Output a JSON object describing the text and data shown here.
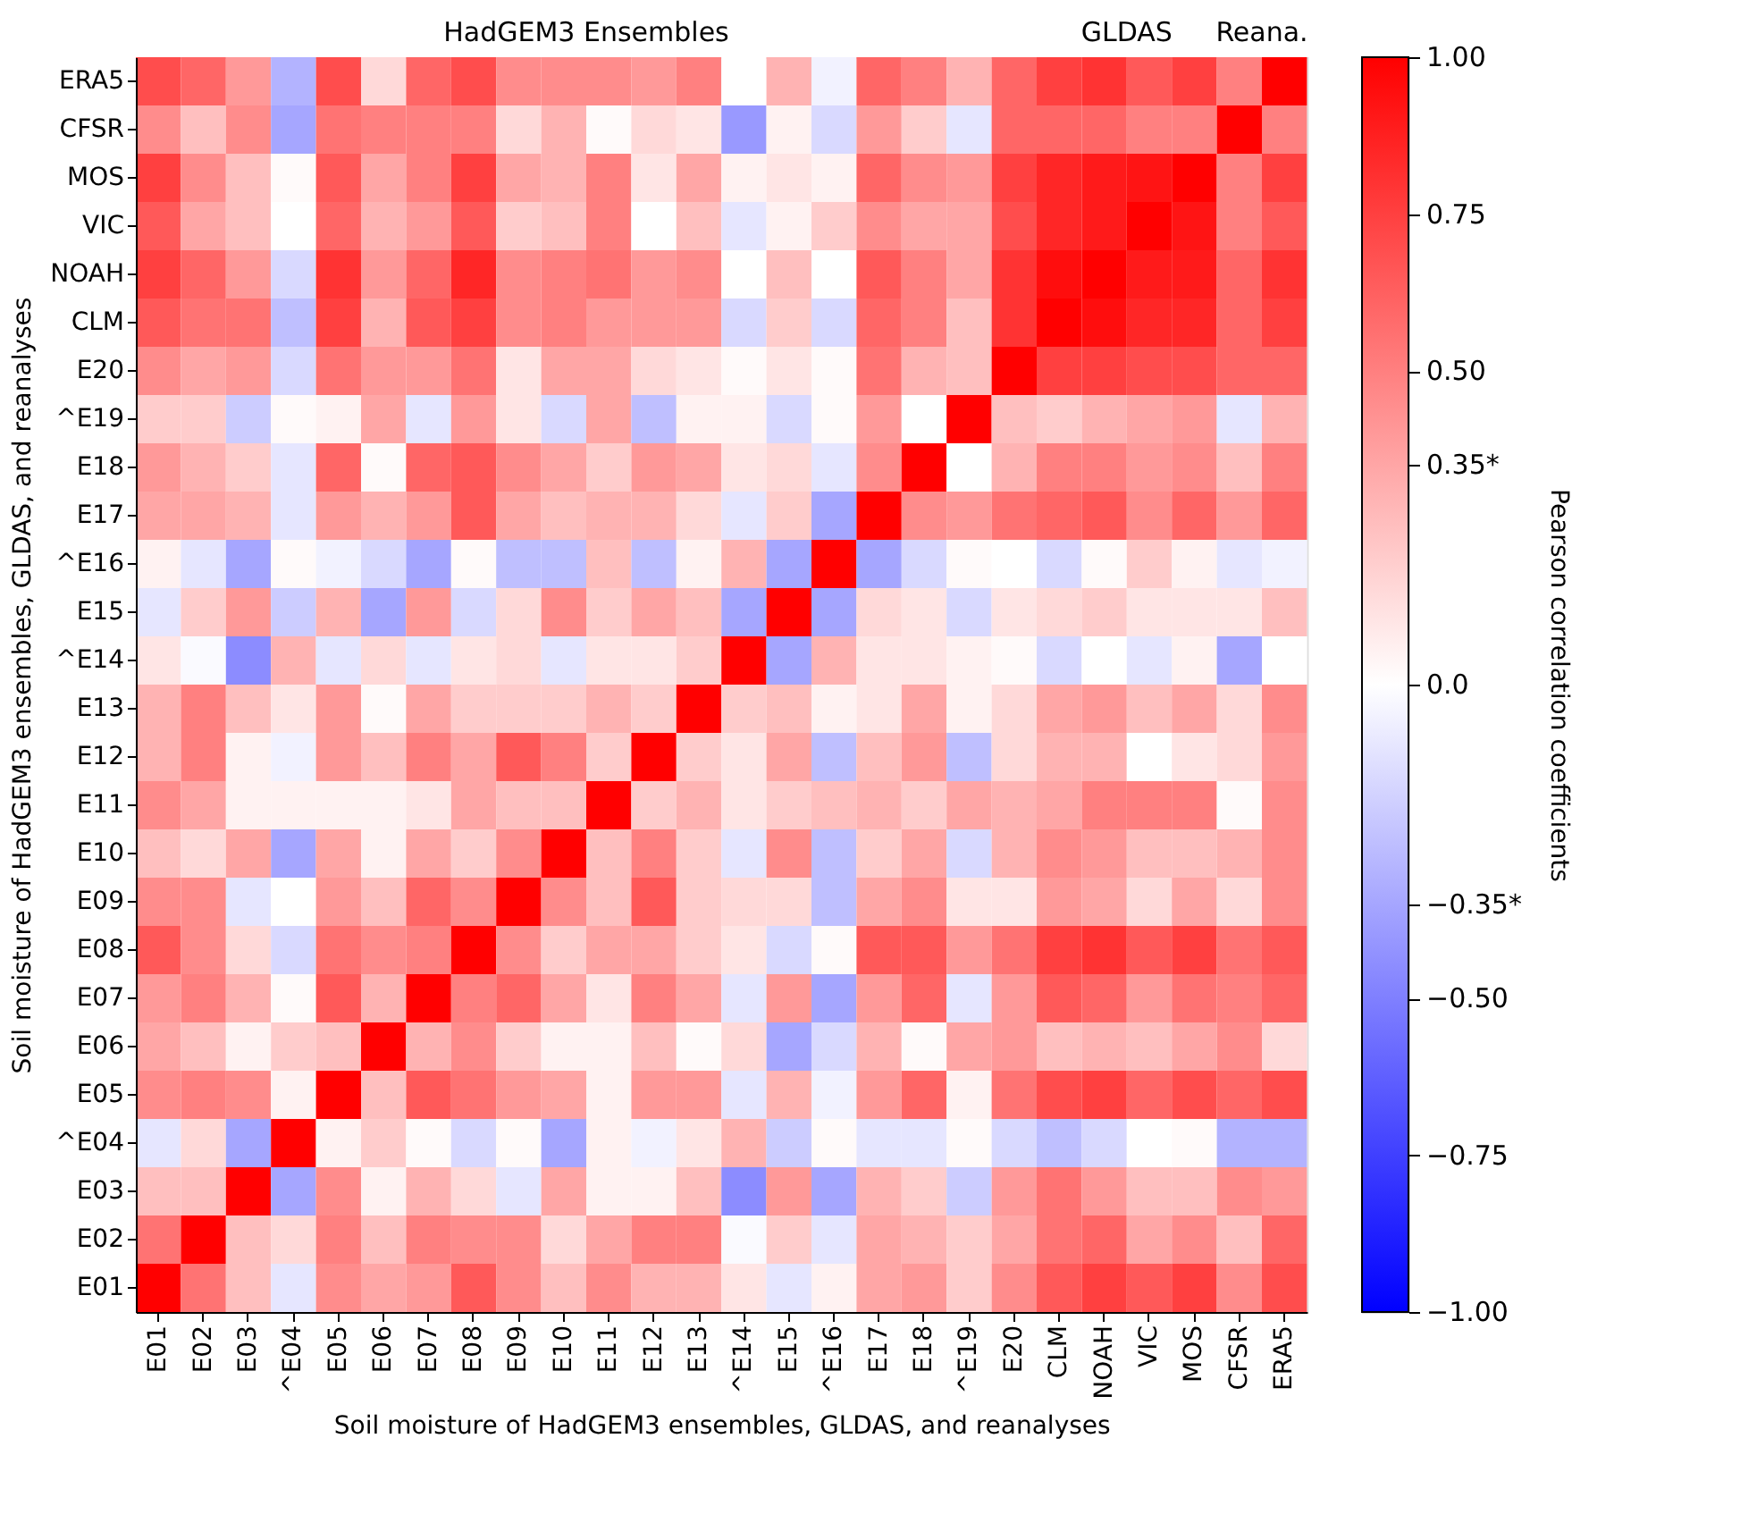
{
  "chart_data": {
    "type": "heatmap",
    "xlabel": "Soil moisture of HadGEM3 ensembles, GLDAS, and reanalyses",
    "ylabel": "Soil moisture of HadGEM3 ensembles, GLDAS, and reanalyses",
    "clabel": "Pearson correlation coefficients",
    "annotations": [
      "HadGEM3 Ensembles",
      "GLDAS",
      "Reana."
    ],
    "categories": [
      "E01",
      "E02",
      "E03",
      "^E04",
      "E05",
      "E06",
      "E07",
      "E08",
      "E09",
      "E10",
      "E11",
      "E12",
      "E13",
      "^E14",
      "E15",
      "^E16",
      "E17",
      "E18",
      "^E19",
      "E20",
      "CLM",
      "NOAH",
      "VIC",
      "MOS",
      "CFSR",
      "ERA5"
    ],
    "y_categories": [
      "ERA5",
      "CFSR",
      "MOS",
      "VIC",
      "NOAH",
      "CLM",
      "E20",
      "^E19",
      "E18",
      "E17",
      "^E16",
      "E15",
      "^E14",
      "E13",
      "E12",
      "E11",
      "E10",
      "E09",
      "E08",
      "E07",
      "E06",
      "E05",
      "^E04",
      "E03",
      "E02",
      "E01"
    ],
    "cells": [
      [
        0.7,
        0.6,
        0.4,
        -0.3,
        0.7,
        0.15,
        0.6,
        0.7,
        0.45,
        0.45,
        0.45,
        0.4,
        0.5,
        0.0,
        0.3,
        -0.05,
        0.6,
        0.5,
        0.3,
        0.6,
        0.75,
        0.8,
        0.65,
        0.75,
        0.5,
        1.0
      ],
      [
        0.45,
        0.25,
        0.45,
        -0.35,
        0.55,
        0.5,
        0.5,
        0.5,
        0.15,
        0.3,
        0.02,
        0.15,
        0.1,
        -0.4,
        0.05,
        -0.15,
        0.4,
        0.2,
        -0.1,
        0.6,
        0.6,
        0.6,
        0.5,
        0.5,
        1.0,
        0.5
      ],
      [
        0.75,
        0.45,
        0.25,
        0.02,
        0.65,
        0.35,
        0.5,
        0.75,
        0.35,
        0.3,
        0.5,
        0.1,
        0.35,
        0.05,
        0.1,
        0.05,
        0.6,
        0.45,
        0.4,
        0.75,
        0.85,
        0.9,
        0.92,
        1.0,
        0.5,
        0.75
      ],
      [
        0.65,
        0.35,
        0.25,
        0.0,
        0.6,
        0.3,
        0.4,
        0.65,
        0.2,
        0.25,
        0.5,
        0.0,
        0.25,
        -0.1,
        0.05,
        0.2,
        0.45,
        0.35,
        0.35,
        0.7,
        0.85,
        0.9,
        1.0,
        0.92,
        0.5,
        0.65
      ],
      [
        0.75,
        0.6,
        0.4,
        -0.15,
        0.8,
        0.4,
        0.6,
        0.85,
        0.45,
        0.5,
        0.55,
        0.4,
        0.45,
        0.0,
        0.25,
        0.0,
        0.65,
        0.5,
        0.35,
        0.8,
        0.95,
        1.0,
        0.9,
        0.9,
        0.6,
        0.8
      ],
      [
        0.65,
        0.55,
        0.55,
        -0.25,
        0.75,
        0.3,
        0.65,
        0.75,
        0.45,
        0.5,
        0.4,
        0.4,
        0.4,
        -0.15,
        0.2,
        -0.15,
        0.6,
        0.5,
        0.25,
        0.8,
        1.0,
        0.95,
        0.85,
        0.85,
        0.6,
        0.75
      ],
      [
        0.45,
        0.35,
        0.4,
        -0.15,
        0.55,
        0.4,
        0.4,
        0.55,
        0.1,
        0.35,
        0.35,
        0.15,
        0.1,
        0.02,
        0.1,
        0.02,
        0.55,
        0.3,
        0.25,
        1.0,
        0.75,
        0.75,
        0.7,
        0.7,
        0.6,
        0.6
      ],
      [
        0.2,
        0.2,
        -0.2,
        0.02,
        0.05,
        0.35,
        -0.1,
        0.4,
        0.1,
        -0.15,
        0.35,
        -0.25,
        0.05,
        0.05,
        -0.15,
        0.02,
        0.4,
        0.0,
        1.0,
        0.25,
        0.2,
        0.3,
        0.35,
        0.4,
        -0.1,
        0.3
      ],
      [
        0.4,
        0.3,
        0.2,
        -0.1,
        0.6,
        0.02,
        0.6,
        0.65,
        0.45,
        0.35,
        0.2,
        0.4,
        0.35,
        0.1,
        0.15,
        -0.1,
        0.45,
        1.0,
        0.0,
        0.3,
        0.5,
        0.5,
        0.4,
        0.45,
        0.25,
        0.5
      ],
      [
        0.35,
        0.35,
        0.3,
        -0.1,
        0.4,
        0.3,
        0.4,
        0.65,
        0.35,
        0.25,
        0.3,
        0.3,
        0.15,
        -0.1,
        0.2,
        -0.35,
        1.0,
        0.45,
        0.4,
        0.55,
        0.6,
        0.65,
        0.45,
        0.6,
        0.4,
        0.6
      ],
      [
        0.05,
        -0.1,
        -0.35,
        0.02,
        -0.05,
        -0.15,
        -0.35,
        0.02,
        -0.25,
        -0.25,
        0.25,
        -0.25,
        0.05,
        0.3,
        -0.35,
        1.0,
        -0.35,
        -0.15,
        0.02,
        0.0,
        -0.15,
        0.02,
        0.2,
        0.05,
        -0.1,
        -0.05
      ],
      [
        -0.1,
        0.2,
        0.4,
        -0.2,
        0.3,
        -0.35,
        0.4,
        -0.15,
        0.15,
        0.45,
        0.2,
        0.35,
        0.25,
        -0.35,
        1.0,
        -0.35,
        0.15,
        0.1,
        -0.15,
        0.1,
        0.15,
        0.2,
        0.1,
        0.1,
        0.1,
        0.25
      ],
      [
        0.1,
        -0.02,
        -0.45,
        0.3,
        -0.1,
        0.15,
        -0.1,
        0.1,
        0.15,
        -0.1,
        0.1,
        0.1,
        0.2,
        1.0,
        -0.35,
        0.3,
        0.1,
        0.1,
        0.05,
        0.02,
        -0.15,
        0.0,
        -0.1,
        0.05,
        -0.35,
        0.0
      ],
      [
        0.3,
        0.5,
        0.25,
        0.1,
        0.4,
        0.02,
        0.35,
        0.2,
        0.2,
        0.2,
        0.3,
        0.2,
        1.0,
        0.2,
        0.25,
        0.05,
        0.1,
        0.35,
        0.05,
        0.15,
        0.35,
        0.4,
        0.25,
        0.35,
        0.15,
        0.45
      ],
      [
        0.3,
        0.5,
        0.05,
        -0.05,
        0.4,
        0.25,
        0.5,
        0.35,
        0.65,
        0.5,
        0.2,
        1.0,
        0.2,
        0.1,
        0.35,
        -0.25,
        0.25,
        0.4,
        -0.25,
        0.15,
        0.3,
        0.3,
        0.0,
        0.1,
        0.15,
        0.4
      ],
      [
        0.45,
        0.35,
        0.05,
        0.05,
        0.05,
        0.05,
        0.1,
        0.35,
        0.25,
        0.25,
        1.0,
        0.2,
        0.3,
        0.1,
        0.2,
        0.25,
        0.3,
        0.2,
        0.35,
        0.3,
        0.35,
        0.5,
        0.5,
        0.5,
        0.02,
        0.45
      ],
      [
        0.25,
        0.15,
        0.35,
        -0.35,
        0.35,
        0.05,
        0.35,
        0.2,
        0.45,
        1.0,
        0.25,
        0.5,
        0.2,
        -0.1,
        0.45,
        -0.25,
        0.2,
        0.35,
        -0.15,
        0.3,
        0.45,
        0.4,
        0.25,
        0.25,
        0.3,
        0.45
      ],
      [
        0.45,
        0.45,
        -0.1,
        0.0,
        0.4,
        0.25,
        0.6,
        0.45,
        1.0,
        0.45,
        0.25,
        0.65,
        0.2,
        0.15,
        0.15,
        -0.25,
        0.35,
        0.45,
        0.1,
        0.1,
        0.4,
        0.35,
        0.15,
        0.35,
        0.15,
        0.45
      ],
      [
        0.65,
        0.45,
        0.15,
        -0.15,
        0.55,
        0.45,
        0.5,
        1.0,
        0.45,
        0.2,
        0.35,
        0.35,
        0.2,
        0.1,
        -0.15,
        0.02,
        0.65,
        0.65,
        0.4,
        0.55,
        0.75,
        0.8,
        0.65,
        0.75,
        0.55,
        0.65
      ],
      [
        0.4,
        0.5,
        0.3,
        0.02,
        0.65,
        0.3,
        1.0,
        0.5,
        0.6,
        0.35,
        0.1,
        0.5,
        0.35,
        -0.1,
        0.4,
        -0.35,
        0.4,
        0.6,
        -0.1,
        0.4,
        0.65,
        0.6,
        0.4,
        0.55,
        0.5,
        0.6
      ],
      [
        0.35,
        0.25,
        0.05,
        0.2,
        0.25,
        1.0,
        0.3,
        0.45,
        0.2,
        0.05,
        0.05,
        0.25,
        0.02,
        0.15,
        -0.35,
        -0.15,
        0.3,
        0.02,
        0.35,
        0.4,
        0.25,
        0.3,
        0.25,
        0.35,
        0.45,
        0.15
      ],
      [
        0.45,
        0.5,
        0.45,
        0.05,
        1.0,
        0.25,
        0.65,
        0.55,
        0.4,
        0.35,
        0.05,
        0.4,
        0.4,
        -0.1,
        0.3,
        -0.05,
        0.4,
        0.6,
        0.05,
        0.55,
        0.7,
        0.75,
        0.6,
        0.7,
        0.6,
        0.7
      ],
      [
        -0.1,
        0.15,
        -0.35,
        1.0,
        0.05,
        0.2,
        0.02,
        -0.15,
        0.02,
        -0.35,
        0.05,
        -0.05,
        0.1,
        0.3,
        -0.2,
        0.02,
        -0.1,
        -0.1,
        0.02,
        -0.15,
        -0.25,
        -0.15,
        0.0,
        0.02,
        -0.3,
        -0.3
      ],
      [
        0.25,
        0.25,
        1.0,
        -0.35,
        0.45,
        0.05,
        0.3,
        0.15,
        -0.1,
        0.35,
        0.05,
        0.05,
        0.25,
        -0.45,
        0.4,
        -0.35,
        0.3,
        0.2,
        -0.2,
        0.4,
        0.55,
        0.4,
        0.25,
        0.25,
        0.45,
        0.4
      ],
      [
        0.55,
        1.0,
        0.25,
        0.15,
        0.5,
        0.25,
        0.5,
        0.45,
        0.45,
        0.15,
        0.35,
        0.5,
        0.5,
        -0.02,
        0.2,
        -0.1,
        0.35,
        0.3,
        0.2,
        0.35,
        0.55,
        0.6,
        0.35,
        0.45,
        0.25,
        0.6
      ],
      [
        1.0,
        0.55,
        0.25,
        -0.1,
        0.45,
        0.35,
        0.4,
        0.65,
        0.45,
        0.25,
        0.45,
        0.3,
        0.3,
        0.1,
        -0.1,
        0.05,
        0.35,
        0.4,
        0.2,
        0.45,
        0.65,
        0.75,
        0.65,
        0.75,
        0.45,
        0.7
      ]
    ],
    "clim": [
      -1.0,
      1.0
    ],
    "cticks": [
      {
        "value": -1.0,
        "label": "−1.00"
      },
      {
        "value": -0.75,
        "label": "−0.75"
      },
      {
        "value": -0.5,
        "label": "−0.50"
      },
      {
        "value": -0.35,
        "label": "−0.35*"
      },
      {
        "value": 0.0,
        "label": "0.0"
      },
      {
        "value": 0.35,
        "label": "0.35*"
      },
      {
        "value": 0.5,
        "label": "0.50"
      },
      {
        "value": 0.75,
        "label": "0.75"
      },
      {
        "value": 1.0,
        "label": "1.00"
      }
    ]
  }
}
